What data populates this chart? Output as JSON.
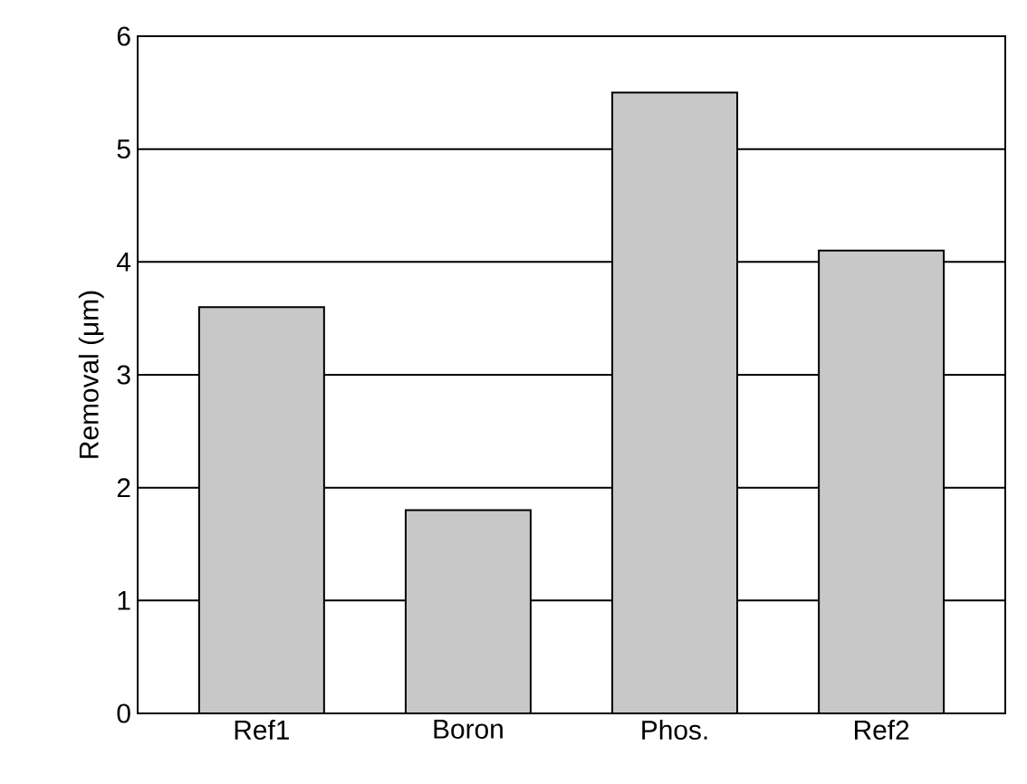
{
  "chart_data": {
    "type": "bar",
    "ylabel": "Removal (μm)",
    "categories": [
      "Ref1",
      "Boron",
      "Phos.",
      "Ref2"
    ],
    "values": [
      3.6,
      1.8,
      5.5,
      4.1
    ],
    "color": "#c8c8c8",
    "ylim": [
      0,
      6
    ],
    "yticks": [
      0,
      1,
      2,
      3,
      4,
      5,
      6
    ],
    "grid": "y"
  }
}
